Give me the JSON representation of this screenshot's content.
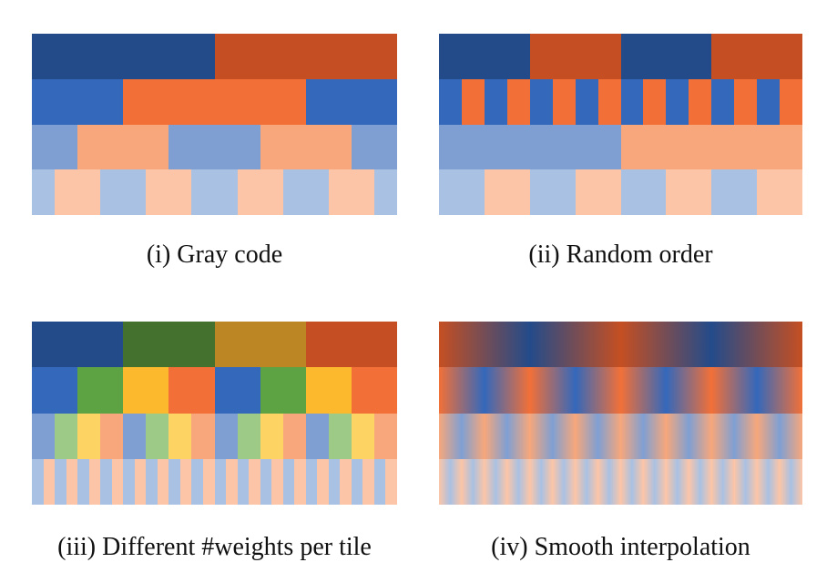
{
  "colors": {
    "blue": [
      "#234b8a",
      "#3468bb",
      "#7f9fd3",
      "#a9c1e3"
    ],
    "orange": [
      "#c54f22",
      "#f27038",
      "#f7a77b",
      "#fcc5a7"
    ],
    "green": [
      "#44722e",
      "#5da343",
      "#9dca86"
    ],
    "gold": [
      "#bd8624",
      "#fdb92e",
      "#fdd464"
    ]
  },
  "panels": [
    {
      "id": "gray-code",
      "caption": "(i) Gray code",
      "smooth": false,
      "rows": [
        {
          "level": 0,
          "edges": [
            0,
            0.5,
            1
          ],
          "colors": [
            "blue",
            "orange"
          ]
        },
        {
          "level": 1,
          "edges": [
            0,
            0.25,
            0.75,
            1
          ],
          "colors": [
            "blue",
            "orange",
            "blue"
          ]
        },
        {
          "level": 2,
          "edges": [
            0,
            0.125,
            0.375,
            0.625,
            0.875,
            1
          ],
          "colors": [
            "blue",
            "orange",
            "blue",
            "orange",
            "blue"
          ]
        },
        {
          "level": 3,
          "edges": [
            0,
            0.0625,
            0.1875,
            0.3125,
            0.4375,
            0.5625,
            0.6875,
            0.8125,
            0.9375,
            1
          ],
          "colors": [
            "blue",
            "orange",
            "blue",
            "orange",
            "blue",
            "orange",
            "blue",
            "orange",
            "blue"
          ]
        }
      ]
    },
    {
      "id": "random-order",
      "caption": "(ii) Random order",
      "smooth": false,
      "rows": [
        {
          "level": 0,
          "count": 4,
          "colors": [
            "blue",
            "orange"
          ]
        },
        {
          "level": 1,
          "count": 16,
          "colors": [
            "blue",
            "orange"
          ]
        },
        {
          "level": 2,
          "count": 2,
          "colors": [
            "blue",
            "orange"
          ]
        },
        {
          "level": 3,
          "count": 8,
          "colors": [
            "blue",
            "orange"
          ]
        }
      ]
    },
    {
      "id": "different-weights",
      "caption": "(iii) Different #weights per tile",
      "smooth": false,
      "rows": [
        {
          "level": 0,
          "count": 4,
          "colors": [
            "blue",
            "green",
            "gold",
            "orange"
          ]
        },
        {
          "level": 1,
          "count": 8,
          "colors": [
            "blue",
            "green",
            "gold",
            "orange"
          ]
        },
        {
          "level": 2,
          "count": 16,
          "colors": [
            "blue",
            "green",
            "gold",
            "orange"
          ]
        },
        {
          "level": 3,
          "count": 32,
          "colors": [
            "blue",
            "orange"
          ]
        }
      ]
    },
    {
      "id": "smooth-interpolation",
      "caption": "(iv) Smooth interpolation",
      "smooth": true,
      "rows": [
        {
          "level": 0,
          "count": 4,
          "colors": [
            "orange",
            "blue"
          ]
        },
        {
          "level": 1,
          "count": 8,
          "colors": [
            "orange",
            "blue"
          ]
        },
        {
          "level": 2,
          "count": 16,
          "colors": [
            "orange",
            "blue"
          ]
        },
        {
          "level": 3,
          "count": 32,
          "colors": [
            "orange",
            "blue"
          ]
        }
      ]
    }
  ]
}
